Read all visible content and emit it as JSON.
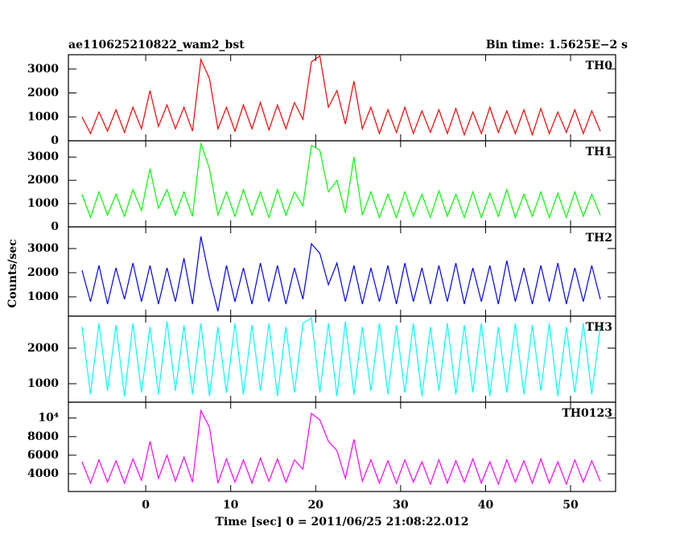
{
  "chart_data": [
    {
      "type": "line",
      "title": "ae110625210822_wam2_bst",
      "subtitle": "Bin time: 1.5625E−2 s",
      "x": [
        -7.5,
        -6.5,
        -5.5,
        -4.5,
        -3.5,
        -2.5,
        -1.5,
        -0.5,
        0.5,
        1.5,
        2.5,
        3.5,
        4.5,
        5.5,
        6.5,
        7.5,
        8.5,
        9.5,
        10.5,
        11.5,
        12.5,
        13.5,
        14.5,
        15.5,
        16.5,
        17.5,
        18.5,
        19.5,
        20.5,
        21.5,
        22.5,
        23.5,
        24.5,
        25.5,
        26.5,
        27.5,
        28.5,
        29.5,
        30.5,
        31.5,
        32.5,
        33.5,
        34.5,
        35.5,
        36.5,
        37.5,
        38.5,
        39.5,
        40.5,
        41.5,
        42.5,
        43.5,
        44.5,
        45.5,
        46.5,
        47.5,
        48.5,
        49.5,
        50.5,
        51.5,
        52.5,
        53.5
      ],
      "series": [
        {
          "name": "TH0",
          "color": "#ff0000",
          "values": [
            1000,
            300,
            1200,
            400,
            1300,
            350,
            1400,
            500,
            2100,
            600,
            1500,
            500,
            1400,
            400,
            3400,
            2600,
            500,
            1400,
            400,
            1500,
            500,
            1600,
            450,
            1500,
            500,
            1600,
            900,
            3300,
            3550,
            1400,
            2100,
            700,
            2500,
            500,
            1400,
            300,
            1300,
            350,
            1400,
            300,
            1250,
            350,
            1300,
            300,
            1350,
            250,
            1200,
            300,
            1400,
            350,
            1250,
            300,
            1300,
            250,
            1350,
            300,
            1200,
            350,
            1300,
            300,
            1250,
            400
          ]
        }
      ],
      "xlim": [
        -9.1,
        55.3
      ],
      "xticks": [
        0,
        10,
        20,
        30,
        40,
        50
      ],
      "ylim": [
        0,
        3600
      ],
      "yticks": [
        0,
        1000,
        2000,
        3000
      ]
    },
    {
      "type": "line",
      "x": [
        -7.5,
        -6.5,
        -5.5,
        -4.5,
        -3.5,
        -2.5,
        -1.5,
        -0.5,
        0.5,
        1.5,
        2.5,
        3.5,
        4.5,
        5.5,
        6.5,
        7.5,
        8.5,
        9.5,
        10.5,
        11.5,
        12.5,
        13.5,
        14.5,
        15.5,
        16.5,
        17.5,
        18.5,
        19.5,
        20.5,
        21.5,
        22.5,
        23.5,
        24.5,
        25.5,
        26.5,
        27.5,
        28.5,
        29.5,
        30.5,
        31.5,
        32.5,
        33.5,
        34.5,
        35.5,
        36.5,
        37.5,
        38.5,
        39.5,
        40.5,
        41.5,
        42.5,
        43.5,
        44.5,
        45.5,
        46.5,
        47.5,
        48.5,
        49.5,
        50.5,
        51.5,
        52.5,
        53.5
      ],
      "series": [
        {
          "name": "TH1",
          "color": "#00ff00",
          "values": [
            1400,
            400,
            1500,
            500,
            1400,
            450,
            1600,
            700,
            2500,
            800,
            1600,
            500,
            1500,
            450,
            3600,
            2500,
            500,
            1500,
            450,
            1600,
            500,
            1500,
            400,
            1600,
            500,
            1500,
            900,
            3500,
            3300,
            1500,
            2000,
            600,
            3000,
            500,
            1500,
            400,
            1400,
            400,
            1500,
            450,
            1400,
            400,
            1550,
            450,
            1400,
            400,
            1500,
            400,
            1450,
            450,
            1600,
            400,
            1400,
            450,
            1500,
            400,
            1450,
            400,
            1500,
            450,
            1400,
            500
          ]
        }
      ],
      "xlim": [
        -9.1,
        55.3
      ],
      "xticks": [
        0,
        10,
        20,
        30,
        40,
        50
      ],
      "ylim": [
        0,
        3700
      ],
      "yticks": [
        0,
        1000,
        2000,
        3000
      ]
    },
    {
      "type": "line",
      "y_label": "Counts/sec",
      "x": [
        -7.5,
        -6.5,
        -5.5,
        -4.5,
        -3.5,
        -2.5,
        -1.5,
        -0.5,
        0.5,
        1.5,
        2.5,
        3.5,
        4.5,
        5.5,
        6.5,
        7.5,
        8.5,
        9.5,
        10.5,
        11.5,
        12.5,
        13.5,
        14.5,
        15.5,
        16.5,
        17.5,
        18.5,
        19.5,
        20.5,
        21.5,
        22.5,
        23.5,
        24.5,
        25.5,
        26.5,
        27.5,
        28.5,
        29.5,
        30.5,
        31.5,
        32.5,
        33.5,
        34.5,
        35.5,
        36.5,
        37.5,
        38.5,
        39.5,
        40.5,
        41.5,
        42.5,
        43.5,
        44.5,
        45.5,
        46.5,
        47.5,
        48.5,
        49.5,
        50.5,
        51.5,
        52.5,
        53.5
      ],
      "series": [
        {
          "name": "TH2",
          "color": "#0000ff",
          "values": [
            2100,
            800,
            2300,
            700,
            2200,
            900,
            2400,
            800,
            2300,
            700,
            2200,
            800,
            2600,
            700,
            3500,
            1800,
            400,
            2300,
            800,
            2200,
            700,
            2400,
            800,
            2300,
            700,
            2200,
            900,
            3200,
            2800,
            1500,
            2400,
            800,
            2300,
            700,
            2200,
            800,
            2300,
            700,
            2400,
            800,
            2200,
            700,
            2300,
            800,
            2400,
            700,
            2200,
            800,
            2300,
            700,
            2500,
            800,
            2200,
            700,
            2300,
            800,
            2400,
            700,
            2200,
            800,
            2300,
            900
          ]
        }
      ],
      "xlim": [
        -9.1,
        55.3
      ],
      "xticks": [
        0,
        10,
        20,
        30,
        40,
        50
      ],
      "ylim": [
        200,
        3900
      ],
      "yticks": [
        1000,
        2000,
        3000
      ]
    },
    {
      "type": "line",
      "x": [
        -7.5,
        -6.5,
        -5.5,
        -4.5,
        -3.5,
        -2.5,
        -1.5,
        -0.5,
        0.5,
        1.5,
        2.5,
        3.5,
        4.5,
        5.5,
        6.5,
        7.5,
        8.5,
        9.5,
        10.5,
        11.5,
        12.5,
        13.5,
        14.5,
        15.5,
        16.5,
        17.5,
        18.5,
        19.5,
        20.5,
        21.5,
        22.5,
        23.5,
        24.5,
        25.5,
        26.5,
        27.5,
        28.5,
        29.5,
        30.5,
        31.5,
        32.5,
        33.5,
        34.5,
        35.5,
        36.5,
        37.5,
        38.5,
        39.5,
        40.5,
        41.5,
        42.5,
        43.5,
        44.5,
        45.5,
        46.5,
        47.5,
        48.5,
        49.5,
        50.5,
        51.5,
        52.5,
        53.5
      ],
      "series": [
        {
          "name": "TH3",
          "color": "#00ffff",
          "values": [
            2600,
            700,
            2700,
            800,
            2650,
            650,
            2700,
            750,
            2600,
            700,
            2750,
            800,
            2650,
            700,
            2700,
            650,
            2600,
            750,
            2700,
            700,
            2650,
            800,
            2700,
            650,
            2600,
            750,
            2700,
            2850,
            750,
            2700,
            650,
            2750,
            700,
            2600,
            800,
            2700,
            700,
            2650,
            750,
            2700,
            650,
            2600,
            800,
            2700,
            700,
            2650,
            750,
            2700,
            650,
            2600,
            750,
            2700,
            700,
            2650,
            800,
            2700,
            650,
            2600,
            750,
            2700,
            700,
            2600
          ]
        }
      ],
      "xlim": [
        -9.1,
        55.3
      ],
      "xticks": [
        0,
        10,
        20,
        30,
        40,
        50
      ],
      "ylim": [
        480,
        2900
      ],
      "yticks": [
        1000,
        2000
      ]
    },
    {
      "type": "line",
      "x_label": "Time [sec] 0 = 2011/06/25 21:08:22.012",
      "x": [
        -7.5,
        -6.5,
        -5.5,
        -4.5,
        -3.5,
        -2.5,
        -1.5,
        -0.5,
        0.5,
        1.5,
        2.5,
        3.5,
        4.5,
        5.5,
        6.5,
        7.5,
        8.5,
        9.5,
        10.5,
        11.5,
        12.5,
        13.5,
        14.5,
        15.5,
        16.5,
        17.5,
        18.5,
        19.5,
        20.5,
        21.5,
        22.5,
        23.5,
        24.5,
        25.5,
        26.5,
        27.5,
        28.5,
        29.5,
        30.5,
        31.5,
        32.5,
        33.5,
        34.5,
        35.5,
        36.5,
        37.5,
        38.5,
        39.5,
        40.5,
        41.5,
        42.5,
        43.5,
        44.5,
        45.5,
        46.5,
        47.5,
        48.5,
        49.5,
        50.5,
        51.5,
        52.5,
        53.5
      ],
      "series": [
        {
          "name": "TH0123",
          "color": "#ff00ff",
          "values": [
            5300,
            3000,
            5500,
            3100,
            5400,
            3000,
            5600,
            3300,
            7500,
            3500,
            6000,
            3200,
            5800,
            3100,
            10800,
            9000,
            3000,
            5600,
            3100,
            5500,
            3000,
            5700,
            3200,
            5600,
            3100,
            5500,
            4500,
            10500,
            9800,
            7500,
            6500,
            3500,
            7700,
            3200,
            5500,
            3000,
            5400,
            3000,
            5500,
            3100,
            5300,
            2900,
            5500,
            3000,
            5400,
            3100,
            5600,
            3000,
            5300,
            2900,
            5500,
            3100,
            5400,
            3000,
            5600,
            3000,
            5300,
            2900,
            5500,
            3100,
            5400,
            3200
          ]
        }
      ],
      "xlim": [
        -9.1,
        55.3
      ],
      "xticks": [
        0,
        10,
        20,
        30,
        40,
        50
      ],
      "ylim": [
        2100,
        11700
      ],
      "yticks": [
        4000,
        6000,
        8000,
        {
          "value": 10000,
          "label": "10⁴"
        }
      ]
    }
  ]
}
